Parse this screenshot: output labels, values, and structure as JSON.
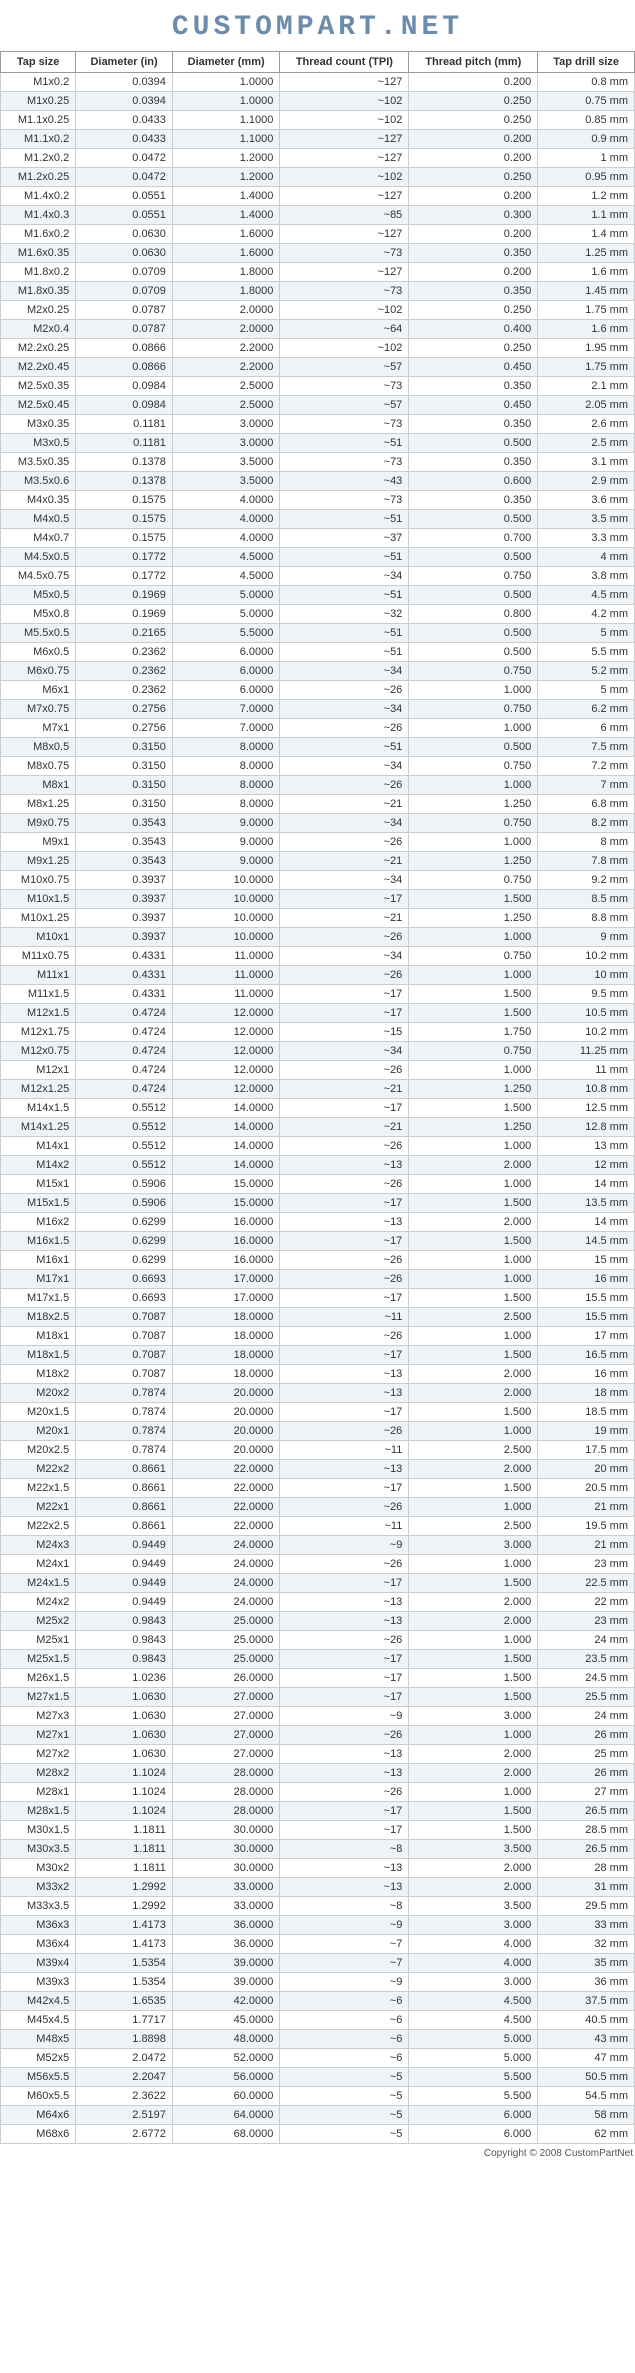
{
  "logo_text": "CUSTOMPART.NET",
  "footer_text": "Copyright © 2008 CustomPartNet",
  "columns": [
    "Tap size",
    "Diameter (in)",
    "Diameter (mm)",
    "Thread count (TPI)",
    "Thread pitch (mm)",
    "Tap drill size"
  ],
  "rows": [
    [
      "M1x0.2",
      "0.0394",
      "1.0000",
      "~127",
      "0.200",
      "0.8 mm"
    ],
    [
      "M1x0.25",
      "0.0394",
      "1.0000",
      "~102",
      "0.250",
      "0.75 mm"
    ],
    [
      "M1.1x0.25",
      "0.0433",
      "1.1000",
      "~102",
      "0.250",
      "0.85 mm"
    ],
    [
      "M1.1x0.2",
      "0.0433",
      "1.1000",
      "~127",
      "0.200",
      "0.9 mm"
    ],
    [
      "M1.2x0.2",
      "0.0472",
      "1.2000",
      "~127",
      "0.200",
      "1 mm"
    ],
    [
      "M1.2x0.25",
      "0.0472",
      "1.2000",
      "~102",
      "0.250",
      "0.95 mm"
    ],
    [
      "M1.4x0.2",
      "0.0551",
      "1.4000",
      "~127",
      "0.200",
      "1.2 mm"
    ],
    [
      "M1.4x0.3",
      "0.0551",
      "1.4000",
      "~85",
      "0.300",
      "1.1 mm"
    ],
    [
      "M1.6x0.2",
      "0.0630",
      "1.6000",
      "~127",
      "0.200",
      "1.4 mm"
    ],
    [
      "M1.6x0.35",
      "0.0630",
      "1.6000",
      "~73",
      "0.350",
      "1.25 mm"
    ],
    [
      "M1.8x0.2",
      "0.0709",
      "1.8000",
      "~127",
      "0.200",
      "1.6 mm"
    ],
    [
      "M1.8x0.35",
      "0.0709",
      "1.8000",
      "~73",
      "0.350",
      "1.45 mm"
    ],
    [
      "M2x0.25",
      "0.0787",
      "2.0000",
      "~102",
      "0.250",
      "1.75 mm"
    ],
    [
      "M2x0.4",
      "0.0787",
      "2.0000",
      "~64",
      "0.400",
      "1.6 mm"
    ],
    [
      "M2.2x0.25",
      "0.0866",
      "2.2000",
      "~102",
      "0.250",
      "1.95 mm"
    ],
    [
      "M2.2x0.45",
      "0.0866",
      "2.2000",
      "~57",
      "0.450",
      "1.75 mm"
    ],
    [
      "M2.5x0.35",
      "0.0984",
      "2.5000",
      "~73",
      "0.350",
      "2.1 mm"
    ],
    [
      "M2.5x0.45",
      "0.0984",
      "2.5000",
      "~57",
      "0.450",
      "2.05 mm"
    ],
    [
      "M3x0.35",
      "0.1181",
      "3.0000",
      "~73",
      "0.350",
      "2.6 mm"
    ],
    [
      "M3x0.5",
      "0.1181",
      "3.0000",
      "~51",
      "0.500",
      "2.5 mm"
    ],
    [
      "M3.5x0.35",
      "0.1378",
      "3.5000",
      "~73",
      "0.350",
      "3.1 mm"
    ],
    [
      "M3.5x0.6",
      "0.1378",
      "3.5000",
      "~43",
      "0.600",
      "2.9 mm"
    ],
    [
      "M4x0.35",
      "0.1575",
      "4.0000",
      "~73",
      "0.350",
      "3.6 mm"
    ],
    [
      "M4x0.5",
      "0.1575",
      "4.0000",
      "~51",
      "0.500",
      "3.5 mm"
    ],
    [
      "M4x0.7",
      "0.1575",
      "4.0000",
      "~37",
      "0.700",
      "3.3 mm"
    ],
    [
      "M4.5x0.5",
      "0.1772",
      "4.5000",
      "~51",
      "0.500",
      "4 mm"
    ],
    [
      "M4.5x0.75",
      "0.1772",
      "4.5000",
      "~34",
      "0.750",
      "3.8 mm"
    ],
    [
      "M5x0.5",
      "0.1969",
      "5.0000",
      "~51",
      "0.500",
      "4.5 mm"
    ],
    [
      "M5x0.8",
      "0.1969",
      "5.0000",
      "~32",
      "0.800",
      "4.2 mm"
    ],
    [
      "M5.5x0.5",
      "0.2165",
      "5.5000",
      "~51",
      "0.500",
      "5 mm"
    ],
    [
      "M6x0.5",
      "0.2362",
      "6.0000",
      "~51",
      "0.500",
      "5.5 mm"
    ],
    [
      "M6x0.75",
      "0.2362",
      "6.0000",
      "~34",
      "0.750",
      "5.2 mm"
    ],
    [
      "M6x1",
      "0.2362",
      "6.0000",
      "~26",
      "1.000",
      "5 mm"
    ],
    [
      "M7x0.75",
      "0.2756",
      "7.0000",
      "~34",
      "0.750",
      "6.2 mm"
    ],
    [
      "M7x1",
      "0.2756",
      "7.0000",
      "~26",
      "1.000",
      "6 mm"
    ],
    [
      "M8x0.5",
      "0.3150",
      "8.0000",
      "~51",
      "0.500",
      "7.5 mm"
    ],
    [
      "M8x0.75",
      "0.3150",
      "8.0000",
      "~34",
      "0.750",
      "7.2 mm"
    ],
    [
      "M8x1",
      "0.3150",
      "8.0000",
      "~26",
      "1.000",
      "7 mm"
    ],
    [
      "M8x1.25",
      "0.3150",
      "8.0000",
      "~21",
      "1.250",
      "6.8 mm"
    ],
    [
      "M9x0.75",
      "0.3543",
      "9.0000",
      "~34",
      "0.750",
      "8.2 mm"
    ],
    [
      "M9x1",
      "0.3543",
      "9.0000",
      "~26",
      "1.000",
      "8 mm"
    ],
    [
      "M9x1.25",
      "0.3543",
      "9.0000",
      "~21",
      "1.250",
      "7.8 mm"
    ],
    [
      "M10x0.75",
      "0.3937",
      "10.0000",
      "~34",
      "0.750",
      "9.2 mm"
    ],
    [
      "M10x1.5",
      "0.3937",
      "10.0000",
      "~17",
      "1.500",
      "8.5 mm"
    ],
    [
      "M10x1.25",
      "0.3937",
      "10.0000",
      "~21",
      "1.250",
      "8.8 mm"
    ],
    [
      "M10x1",
      "0.3937",
      "10.0000",
      "~26",
      "1.000",
      "9 mm"
    ],
    [
      "M11x0.75",
      "0.4331",
      "11.0000",
      "~34",
      "0.750",
      "10.2 mm"
    ],
    [
      "M11x1",
      "0.4331",
      "11.0000",
      "~26",
      "1.000",
      "10 mm"
    ],
    [
      "M11x1.5",
      "0.4331",
      "11.0000",
      "~17",
      "1.500",
      "9.5 mm"
    ],
    [
      "M12x1.5",
      "0.4724",
      "12.0000",
      "~17",
      "1.500",
      "10.5 mm"
    ],
    [
      "M12x1.75",
      "0.4724",
      "12.0000",
      "~15",
      "1.750",
      "10.2 mm"
    ],
    [
      "M12x0.75",
      "0.4724",
      "12.0000",
      "~34",
      "0.750",
      "11.25 mm"
    ],
    [
      "M12x1",
      "0.4724",
      "12.0000",
      "~26",
      "1.000",
      "11 mm"
    ],
    [
      "M12x1.25",
      "0.4724",
      "12.0000",
      "~21",
      "1.250",
      "10.8 mm"
    ],
    [
      "M14x1.5",
      "0.5512",
      "14.0000",
      "~17",
      "1.500",
      "12.5 mm"
    ],
    [
      "M14x1.25",
      "0.5512",
      "14.0000",
      "~21",
      "1.250",
      "12.8 mm"
    ],
    [
      "M14x1",
      "0.5512",
      "14.0000",
      "~26",
      "1.000",
      "13 mm"
    ],
    [
      "M14x2",
      "0.5512",
      "14.0000",
      "~13",
      "2.000",
      "12 mm"
    ],
    [
      "M15x1",
      "0.5906",
      "15.0000",
      "~26",
      "1.000",
      "14 mm"
    ],
    [
      "M15x1.5",
      "0.5906",
      "15.0000",
      "~17",
      "1.500",
      "13.5 mm"
    ],
    [
      "M16x2",
      "0.6299",
      "16.0000",
      "~13",
      "2.000",
      "14 mm"
    ],
    [
      "M16x1.5",
      "0.6299",
      "16.0000",
      "~17",
      "1.500",
      "14.5 mm"
    ],
    [
      "M16x1",
      "0.6299",
      "16.0000",
      "~26",
      "1.000",
      "15 mm"
    ],
    [
      "M17x1",
      "0.6693",
      "17.0000",
      "~26",
      "1.000",
      "16 mm"
    ],
    [
      "M17x1.5",
      "0.6693",
      "17.0000",
      "~17",
      "1.500",
      "15.5 mm"
    ],
    [
      "M18x2.5",
      "0.7087",
      "18.0000",
      "~11",
      "2.500",
      "15.5 mm"
    ],
    [
      "M18x1",
      "0.7087",
      "18.0000",
      "~26",
      "1.000",
      "17 mm"
    ],
    [
      "M18x1.5",
      "0.7087",
      "18.0000",
      "~17",
      "1.500",
      "16.5 mm"
    ],
    [
      "M18x2",
      "0.7087",
      "18.0000",
      "~13",
      "2.000",
      "16 mm"
    ],
    [
      "M20x2",
      "0.7874",
      "20.0000",
      "~13",
      "2.000",
      "18 mm"
    ],
    [
      "M20x1.5",
      "0.7874",
      "20.0000",
      "~17",
      "1.500",
      "18.5 mm"
    ],
    [
      "M20x1",
      "0.7874",
      "20.0000",
      "~26",
      "1.000",
      "19 mm"
    ],
    [
      "M20x2.5",
      "0.7874",
      "20.0000",
      "~11",
      "2.500",
      "17.5 mm"
    ],
    [
      "M22x2",
      "0.8661",
      "22.0000",
      "~13",
      "2.000",
      "20 mm"
    ],
    [
      "M22x1.5",
      "0.8661",
      "22.0000",
      "~17",
      "1.500",
      "20.5 mm"
    ],
    [
      "M22x1",
      "0.8661",
      "22.0000",
      "~26",
      "1.000",
      "21 mm"
    ],
    [
      "M22x2.5",
      "0.8661",
      "22.0000",
      "~11",
      "2.500",
      "19.5 mm"
    ],
    [
      "M24x3",
      "0.9449",
      "24.0000",
      "~9",
      "3.000",
      "21 mm"
    ],
    [
      "M24x1",
      "0.9449",
      "24.0000",
      "~26",
      "1.000",
      "23 mm"
    ],
    [
      "M24x1.5",
      "0.9449",
      "24.0000",
      "~17",
      "1.500",
      "22.5 mm"
    ],
    [
      "M24x2",
      "0.9449",
      "24.0000",
      "~13",
      "2.000",
      "22 mm"
    ],
    [
      "M25x2",
      "0.9843",
      "25.0000",
      "~13",
      "2.000",
      "23 mm"
    ],
    [
      "M25x1",
      "0.9843",
      "25.0000",
      "~26",
      "1.000",
      "24 mm"
    ],
    [
      "M25x1.5",
      "0.9843",
      "25.0000",
      "~17",
      "1.500",
      "23.5 mm"
    ],
    [
      "M26x1.5",
      "1.0236",
      "26.0000",
      "~17",
      "1.500",
      "24.5 mm"
    ],
    [
      "M27x1.5",
      "1.0630",
      "27.0000",
      "~17",
      "1.500",
      "25.5 mm"
    ],
    [
      "M27x3",
      "1.0630",
      "27.0000",
      "~9",
      "3.000",
      "24 mm"
    ],
    [
      "M27x1",
      "1.0630",
      "27.0000",
      "~26",
      "1.000",
      "26 mm"
    ],
    [
      "M27x2",
      "1.0630",
      "27.0000",
      "~13",
      "2.000",
      "25 mm"
    ],
    [
      "M28x2",
      "1.1024",
      "28.0000",
      "~13",
      "2.000",
      "26 mm"
    ],
    [
      "M28x1",
      "1.1024",
      "28.0000",
      "~26",
      "1.000",
      "27 mm"
    ],
    [
      "M28x1.5",
      "1.1024",
      "28.0000",
      "~17",
      "1.500",
      "26.5 mm"
    ],
    [
      "M30x1.5",
      "1.1811",
      "30.0000",
      "~17",
      "1.500",
      "28.5 mm"
    ],
    [
      "M30x3.5",
      "1.1811",
      "30.0000",
      "~8",
      "3.500",
      "26.5 mm"
    ],
    [
      "M30x2",
      "1.1811",
      "30.0000",
      "~13",
      "2.000",
      "28 mm"
    ],
    [
      "M33x2",
      "1.2992",
      "33.0000",
      "~13",
      "2.000",
      "31 mm"
    ],
    [
      "M33x3.5",
      "1.2992",
      "33.0000",
      "~8",
      "3.500",
      "29.5 mm"
    ],
    [
      "M36x3",
      "1.4173",
      "36.0000",
      "~9",
      "3.000",
      "33 mm"
    ],
    [
      "M36x4",
      "1.4173",
      "36.0000",
      "~7",
      "4.000",
      "32 mm"
    ],
    [
      "M39x4",
      "1.5354",
      "39.0000",
      "~7",
      "4.000",
      "35 mm"
    ],
    [
      "M39x3",
      "1.5354",
      "39.0000",
      "~9",
      "3.000",
      "36 mm"
    ],
    [
      "M42x4.5",
      "1.6535",
      "42.0000",
      "~6",
      "4.500",
      "37.5 mm"
    ],
    [
      "M45x4.5",
      "1.7717",
      "45.0000",
      "~6",
      "4.500",
      "40.5 mm"
    ],
    [
      "M48x5",
      "1.8898",
      "48.0000",
      "~6",
      "5.000",
      "43 mm"
    ],
    [
      "M52x5",
      "2.0472",
      "52.0000",
      "~6",
      "5.000",
      "47 mm"
    ],
    [
      "M56x5.5",
      "2.2047",
      "56.0000",
      "~5",
      "5.500",
      "50.5 mm"
    ],
    [
      "M60x5.5",
      "2.3622",
      "60.0000",
      "~5",
      "5.500",
      "54.5 mm"
    ],
    [
      "M64x6",
      "2.5197",
      "64.0000",
      "~5",
      "6.000",
      "58 mm"
    ],
    [
      "M68x6",
      "2.6772",
      "68.0000",
      "~5",
      "6.000",
      "62 mm"
    ]
  ]
}
